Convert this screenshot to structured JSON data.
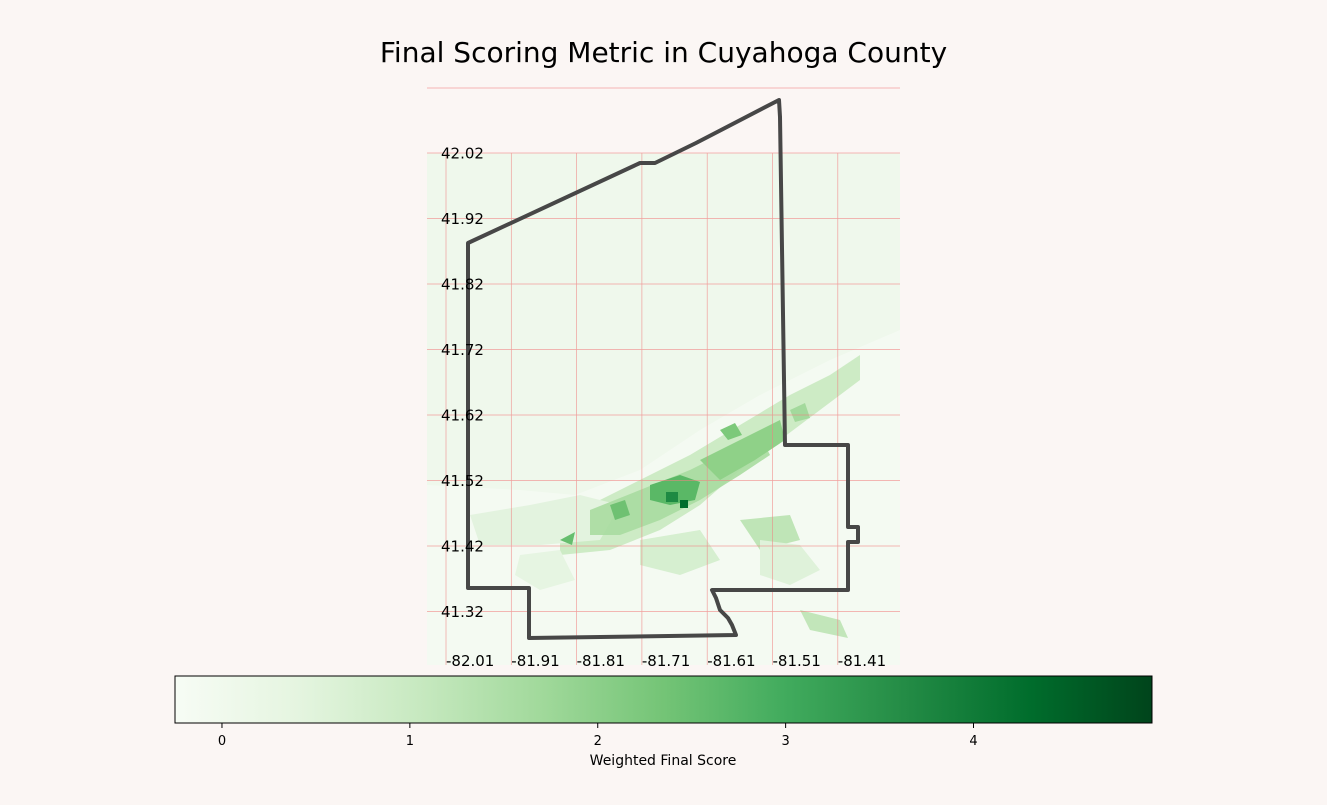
{
  "title": "Final Scoring Metric in Cuyahoga County",
  "map": {
    "lat_ticks": [
      "42.02",
      "41.92",
      "41.82",
      "41.72",
      "41.62",
      "41.52",
      "41.42",
      "41.32"
    ],
    "lon_ticks": [
      "-82.01",
      "-81.91",
      "-81.81",
      "-81.71",
      "-81.61",
      "-81.51",
      "-81.41"
    ],
    "grid_color": "#f08080",
    "boundary_color": "#474747",
    "colormap": "Greens"
  },
  "colorbar": {
    "label": "Weighted Final Score",
    "ticks": [
      "0",
      "1",
      "2",
      "3",
      "4"
    ],
    "min": -0.25,
    "max": 4.95,
    "colors": [
      "#f7fcf5",
      "#e5f5e0",
      "#c7e9c0",
      "#a1d99b",
      "#74c476",
      "#41ab5d",
      "#238b45",
      "#006d2c",
      "#00441b"
    ]
  }
}
